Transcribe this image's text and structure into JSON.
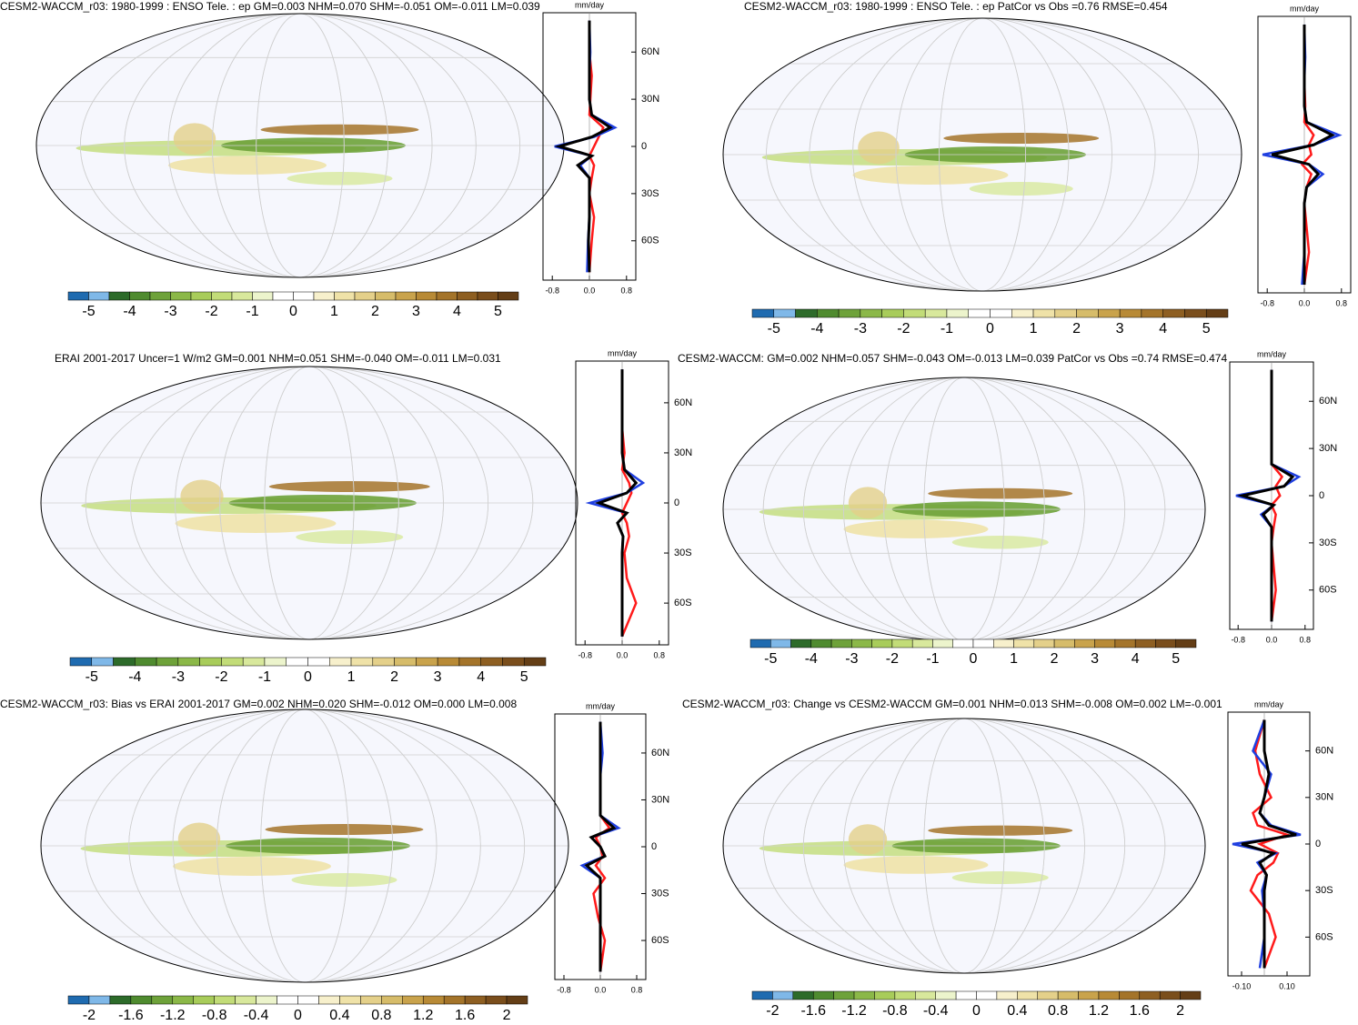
{
  "palette": [
    "#1f6bb0",
    "#7fb8e8",
    "#2d6b2a",
    "#4f8b2f",
    "#6ea23a",
    "#8bb848",
    "#a8cc5a",
    "#c2dc78",
    "#d8e89c",
    "#ecf4cc",
    "#ffffff",
    "#ffffff",
    "#f7f0cc",
    "#efe2a8",
    "#e4d08a",
    "#d6bc6a",
    "#c9a34c",
    "#b88a36",
    "#a4742a",
    "#8e5f22",
    "#7a4e1c",
    "#643e16"
  ],
  "chart_data": [
    {
      "type": "map",
      "title": "CESM2-WACCM_r03: 1980-1999 : ENSO Tele. : ep GM=0.003 NHM=0.070 SHM=-0.051 OM=-0.011 LM=0.039",
      "colorbar": {
        "clim": [
          -5.5,
          5.5
        ],
        "ticks": [
          -5,
          -4,
          -3,
          -2,
          -1,
          0,
          1,
          2,
          3,
          4,
          5
        ]
      },
      "zonal_mean": {
        "type": "line",
        "unit": "mm/day",
        "x": [
          -80,
          -60,
          -45,
          -30,
          -20,
          -12,
          -6,
          0,
          6,
          12,
          20,
          30,
          45,
          60,
          80
        ],
        "ylim": [
          -85,
          85
        ],
        "yticks": [
          {
            "value": 60,
            "label": "60N"
          },
          {
            "value": 30,
            "label": "30N"
          },
          0,
          {
            "value": -30,
            "label": "30S"
          },
          {
            "value": -60,
            "label": "60S"
          }
        ],
        "xlim": [
          -1,
          1
        ],
        "xticks": [
          -0.8,
          {
            "value": 0,
            "label": "0.0"
          },
          0.8
        ],
        "series": [
          {
            "color": "#ff1a1a",
            "values": [
              0,
              0.05,
              0.1,
              0,
              0.05,
              0.1,
              0,
              0.1,
              0.2,
              0.3,
              0,
              0.02,
              0.05,
              0,
              0
            ]
          },
          {
            "color": "#1f3fe0",
            "values": [
              -0.05,
              -0.03,
              0,
              0,
              0,
              -0.2,
              0.05,
              -0.75,
              0.1,
              0.55,
              0.05,
              0,
              0,
              0.02,
              0
            ]
          },
          {
            "color": "#000000",
            "values": [
              0,
              -0.02,
              0,
              0,
              0,
              -0.25,
              0.05,
              -0.65,
              0.05,
              0.45,
              0.05,
              0,
              0,
              0,
              0
            ]
          }
        ]
      }
    },
    {
      "type": "map",
      "title": "CESM2-WACCM_r03: 1980-1999 : ENSO Tele. : ep PatCor vs Obs =0.76 RMSE=0.454",
      "colorbar": {
        "clim": [
          -5.5,
          5.5
        ],
        "ticks": [
          -5,
          -4,
          -3,
          -2,
          -1,
          0,
          1,
          2,
          3,
          4,
          5
        ]
      },
      "zonal_mean": {
        "type": "line",
        "unit": "mm/day",
        "x": [
          -80,
          -60,
          -45,
          -30,
          -20,
          -12,
          -6,
          0,
          6,
          12,
          20,
          30,
          45,
          60,
          80
        ],
        "ylim": [
          -85,
          85
        ],
        "yticks": [],
        "xlim": [
          -1,
          1
        ],
        "xticks": [
          -0.8,
          {
            "value": 0,
            "label": "0.0"
          },
          0.8
        ],
        "series": [
          {
            "color": "#ff1a1a",
            "values": [
              0,
              0.1,
              0.05,
              0,
              0.05,
              0.15,
              -0.05,
              0.15,
              0.1,
              0.2,
              0,
              0.02,
              0,
              0,
              0
            ]
          },
          {
            "color": "#1f3fe0",
            "values": [
              -0.05,
              0,
              0,
              0,
              0.05,
              0.4,
              0.1,
              -0.9,
              0.2,
              0.75,
              0.05,
              0,
              0,
              0.02,
              0
            ]
          },
          {
            "color": "#000000",
            "values": [
              0,
              0,
              0,
              0,
              0.05,
              0.3,
              0.1,
              -0.7,
              0.2,
              0.6,
              0.05,
              0,
              0,
              0,
              0
            ]
          }
        ]
      }
    },
    {
      "type": "map",
      "title": "ERAI 2001-2017 Uncer=1 W/m2 GM=0.001 NHM=0.051 SHM=-0.040 OM=-0.011 LM=0.031",
      "colorbar": {
        "clim": [
          -5.5,
          5.5
        ],
        "ticks": [
          -5,
          -4,
          -3,
          -2,
          -1,
          0,
          1,
          2,
          3,
          4,
          5
        ]
      },
      "zonal_mean": {
        "type": "line",
        "unit": "mm/day",
        "x": [
          -80,
          -60,
          -45,
          -30,
          -20,
          -12,
          -6,
          0,
          6,
          12,
          20,
          30,
          45,
          60,
          80
        ],
        "ylim": [
          -85,
          85
        ],
        "yticks": [
          {
            "value": 60,
            "label": "60N"
          },
          {
            "value": 30,
            "label": "30N"
          },
          0,
          {
            "value": -30,
            "label": "30S"
          },
          {
            "value": -60,
            "label": "60S"
          }
        ],
        "xlim": [
          -1,
          1
        ],
        "xticks": [
          -0.8,
          {
            "value": 0,
            "label": "0.0"
          },
          0.8
        ],
        "series": [
          {
            "color": "#ff1a1a",
            "values": [
              0,
              0.3,
              0.1,
              0.05,
              0.15,
              0.1,
              0,
              0.1,
              0.2,
              0.15,
              0,
              0.05,
              0,
              0,
              0
            ]
          },
          {
            "color": "#1f3fe0",
            "values": [
              0,
              0,
              0,
              0,
              0.02,
              -0.1,
              0.1,
              -0.7,
              0.1,
              0.45,
              0.05,
              0,
              0,
              0,
              0
            ]
          },
          {
            "color": "#000000",
            "values": [
              0,
              0,
              0,
              0,
              0.02,
              -0.1,
              0.1,
              -0.5,
              0.1,
              0.3,
              0.05,
              0,
              0,
              0,
              0
            ]
          }
        ]
      }
    },
    {
      "type": "map",
      "title": "CESM2-WACCM: GM=0.002 NHM=0.057 SHM=-0.043 OM=-0.013 LM=0.039 PatCor vs Obs =0.74 RMSE=0.474",
      "colorbar": {
        "clim": [
          -5.5,
          5.5
        ],
        "ticks": [
          -5,
          -4,
          -3,
          -2,
          -1,
          0,
          1,
          2,
          3,
          4,
          5
        ]
      },
      "zonal_mean": {
        "type": "line",
        "unit": "mm/day",
        "x": [
          -80,
          -60,
          -45,
          -30,
          -20,
          -12,
          -6,
          0,
          6,
          12,
          20,
          30,
          45,
          60,
          80
        ],
        "ylim": [
          -85,
          85
        ],
        "yticks": [
          {
            "value": 60,
            "label": "60N"
          },
          {
            "value": 30,
            "label": "30N"
          },
          0,
          {
            "value": -30,
            "label": "30S"
          },
          {
            "value": -60,
            "label": "60S"
          }
        ],
        "xlim": [
          -1,
          1
        ],
        "xticks": [
          -0.8,
          {
            "value": 0,
            "label": "0.0"
          },
          0.8
        ],
        "series": [
          {
            "color": "#ff1a1a",
            "values": [
              0,
              0.1,
              0.05,
              0,
              0.05,
              0.1,
              0,
              0.2,
              0.1,
              0.25,
              0,
              0,
              0,
              0,
              0
            ]
          },
          {
            "color": "#1f3fe0",
            "values": [
              0,
              0,
              0,
              0,
              0,
              -0.25,
              0.05,
              -0.85,
              0.3,
              0.65,
              0,
              0,
              0,
              0,
              0
            ]
          },
          {
            "color": "#000000",
            "values": [
              0,
              0,
              0,
              0,
              0,
              -0.2,
              0.05,
              -0.7,
              0.3,
              0.5,
              0,
              0,
              0,
              0,
              0
            ]
          }
        ]
      }
    },
    {
      "type": "map",
      "title": "CESM2-WACCM_r03: Bias vs ERAI 2001-2017 GM=0.002 NHM=0.020 SHM=-0.012 OM=0.000 LM=0.008",
      "colorbar": {
        "clim": [
          -2.2,
          2.2
        ],
        "ticks": [
          -2,
          -1.6,
          -1.2,
          -0.8,
          -0.4,
          0,
          0.4,
          0.8,
          1.2,
          1.6,
          2
        ]
      },
      "zonal_mean": {
        "type": "line",
        "unit": "mm/day",
        "x": [
          -80,
          -60,
          -45,
          -30,
          -20,
          -12,
          -6,
          0,
          6,
          12,
          20,
          30,
          45,
          60,
          80
        ],
        "ylim": [
          -85,
          85
        ],
        "yticks": [
          {
            "value": 60,
            "label": "60N"
          },
          {
            "value": 30,
            "label": "30N"
          },
          0,
          {
            "value": -30,
            "label": "30S"
          },
          {
            "value": -60,
            "label": "60S"
          }
        ],
        "xlim": [
          -1,
          1
        ],
        "xticks": [
          -0.8,
          {
            "value": 0,
            "label": "0.0"
          },
          0.8
        ],
        "series": [
          {
            "color": "#ff1a1a",
            "values": [
              0,
              0.1,
              -0.05,
              -0.15,
              0.1,
              -0.1,
              0.05,
              0,
              -0.1,
              0.2,
              0,
              0,
              0,
              0,
              0
            ]
          },
          {
            "color": "#1f3fe0",
            "values": [
              0,
              0,
              0,
              0,
              0,
              -0.4,
              0.1,
              0,
              -0.2,
              0.4,
              0,
              0,
              0,
              0.05,
              0
            ]
          },
          {
            "color": "#000000",
            "values": [
              0,
              0,
              0,
              0,
              0,
              -0.3,
              0.1,
              0,
              -0.2,
              0.3,
              0,
              0,
              0,
              0,
              0
            ]
          }
        ]
      }
    },
    {
      "type": "map",
      "title": "CESM2-WACCM_r03: Change vs CESM2-WACCM GM=0.001 NHM=0.013 SHM=-0.008 OM=0.002 LM=-0.001",
      "colorbar": {
        "clim": [
          -2.2,
          2.2
        ],
        "ticks": [
          -2,
          -1.6,
          -1.2,
          -0.8,
          -0.4,
          0,
          0.4,
          0.8,
          1.2,
          1.6,
          2
        ]
      },
      "zonal_mean": {
        "type": "line",
        "unit": "mm/day",
        "x": [
          -80,
          -60,
          -45,
          -30,
          -20,
          -12,
          -6,
          0,
          6,
          12,
          20,
          30,
          45,
          60,
          80
        ],
        "ylim": [
          -85,
          85
        ],
        "yticks": [
          {
            "value": 60,
            "label": "60N"
          },
          {
            "value": 30,
            "label": "30N"
          },
          0,
          {
            "value": -30,
            "label": "30S"
          },
          {
            "value": -60,
            "label": "60S"
          }
        ],
        "xlim": [
          -0.16,
          0.2
        ],
        "xticks": [
          {
            "value": -0.1,
            "label": "-0.10"
          },
          {
            "value": 0.1,
            "label": "0.10"
          }
        ],
        "series": [
          {
            "color": "#ff1a1a",
            "values": [
              0,
              0.05,
              0.02,
              -0.06,
              -0.03,
              0.04,
              0.06,
              -0.02,
              0.1,
              -0.03,
              -0.05,
              0.03,
              -0.02,
              -0.04,
              0
            ]
          },
          {
            "color": "#1f3fe0",
            "values": [
              -0.02,
              0,
              0,
              -0.01,
              0.01,
              -0.03,
              0.05,
              -0.14,
              0.16,
              0.03,
              -0.02,
              0,
              0.03,
              -0.05,
              0
            ]
          },
          {
            "color": "#000000",
            "values": [
              0,
              0,
              0,
              0,
              0.01,
              -0.02,
              0.04,
              -0.1,
              0.14,
              0.02,
              -0.02,
              0,
              0.02,
              0,
              0
            ]
          }
        ]
      }
    }
  ]
}
